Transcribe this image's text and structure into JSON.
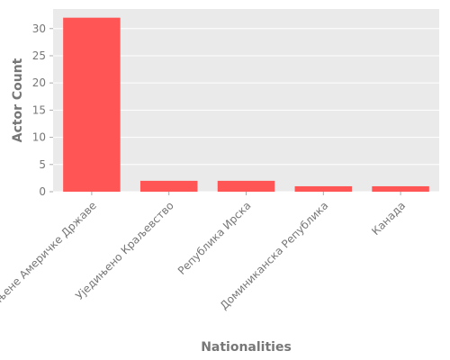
{
  "chart_data": {
    "type": "bar",
    "title": "",
    "xlabel": "Nationalities",
    "ylabel": "Actor Count",
    "categories": [
      "Сједињене Америчке Државе",
      "Уједињено Краљевство",
      "Република Ирска",
      "Доминиканска Република",
      "Канада"
    ],
    "values": [
      32,
      2,
      2,
      1,
      1
    ],
    "ylim": [
      0,
      33.6
    ],
    "yticks": [
      0,
      5,
      10,
      15,
      20,
      25,
      30
    ],
    "grid": true,
    "legend": "none",
    "colors": {
      "bar": "#ff5555",
      "plot_background": "#eaeaea",
      "grid": "#ffffff",
      "text": "#777777"
    }
  }
}
